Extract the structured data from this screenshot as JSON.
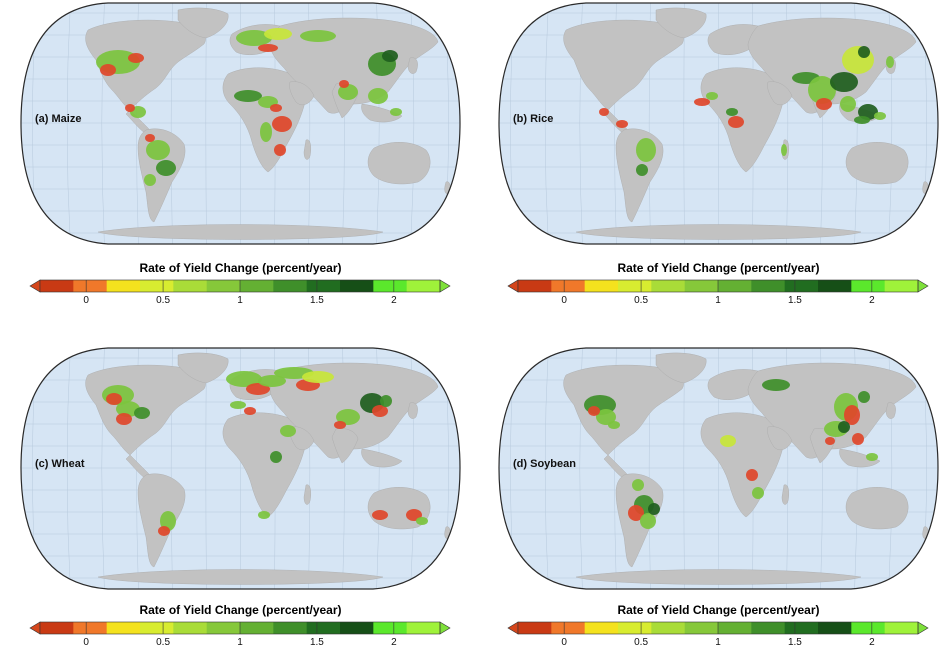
{
  "panels": [
    {
      "label": "(a) Maize"
    },
    {
      "label": "(b) Rice"
    },
    {
      "label": "(c) Wheat"
    },
    {
      "label": "(d) Soybean"
    }
  ],
  "legend": {
    "title": "Rate of Yield Change (percent/year)",
    "ticks": [
      "0",
      "0.5",
      "1",
      "1.5",
      "2"
    ],
    "tick_values": [
      0,
      0.5,
      1,
      1.5,
      2
    ],
    "range": [
      -0.3,
      2.3
    ],
    "colors": [
      "#c93a14",
      "#f0782a",
      "#f4e21e",
      "#d8ec30",
      "#a9dc38",
      "#86c83a",
      "#64b033",
      "#3f8f2a",
      "#216d20",
      "#164f17",
      "#5be82c",
      "#9ff23a"
    ],
    "under_color": "#d4461c",
    "over_color": "#7ee03a"
  },
  "map_colors": {
    "ocean": "#d6e5f4",
    "land": "#c2c2c2",
    "grid": "#b7c9dc",
    "outline": "#2a2a2a",
    "decline": "#e0472a",
    "slight": "#c8e63a",
    "moderate": "#7cc43e",
    "strong": "#3f8f2a",
    "very_strong": "#1f5e1e"
  }
}
